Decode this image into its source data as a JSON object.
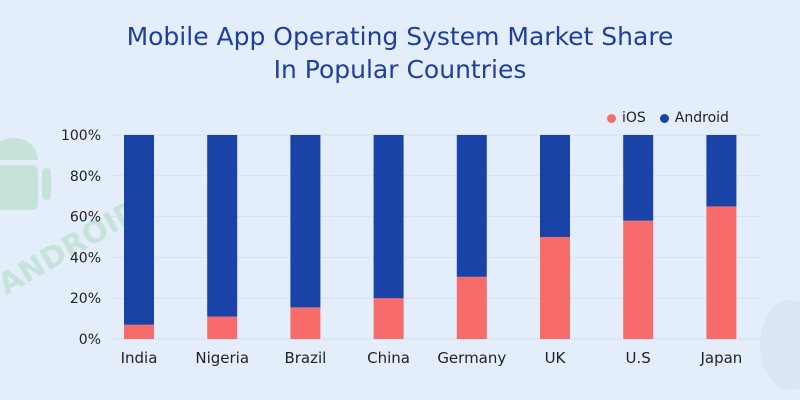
{
  "chart_data": {
    "type": "bar",
    "stacked": true,
    "title": "Mobile App Operating System Market Share\nIn Popular Countries",
    "title_lines": [
      "Mobile App Operating System Market Share",
      "In Popular Countries"
    ],
    "categories": [
      "India",
      "Nigeria",
      "Brazil",
      "China",
      "Germany",
      "UK",
      "U.S",
      "Japan"
    ],
    "series": [
      {
        "name": "iOS",
        "color": "#f76b6b",
        "values": [
          7,
          11,
          15.5,
          20,
          30.5,
          50,
          58,
          65
        ]
      },
      {
        "name": "Android",
        "color": "#1a43a8",
        "values": [
          93,
          89,
          84.5,
          80,
          69.5,
          50,
          42,
          35
        ]
      }
    ],
    "yticks": [
      "0%",
      "20%",
      "40%",
      "60%",
      "80%",
      "100%"
    ],
    "ylim": [
      0,
      100
    ],
    "xlabel": "",
    "ylabel": "",
    "grid": true,
    "legend_position": "top-right"
  }
}
